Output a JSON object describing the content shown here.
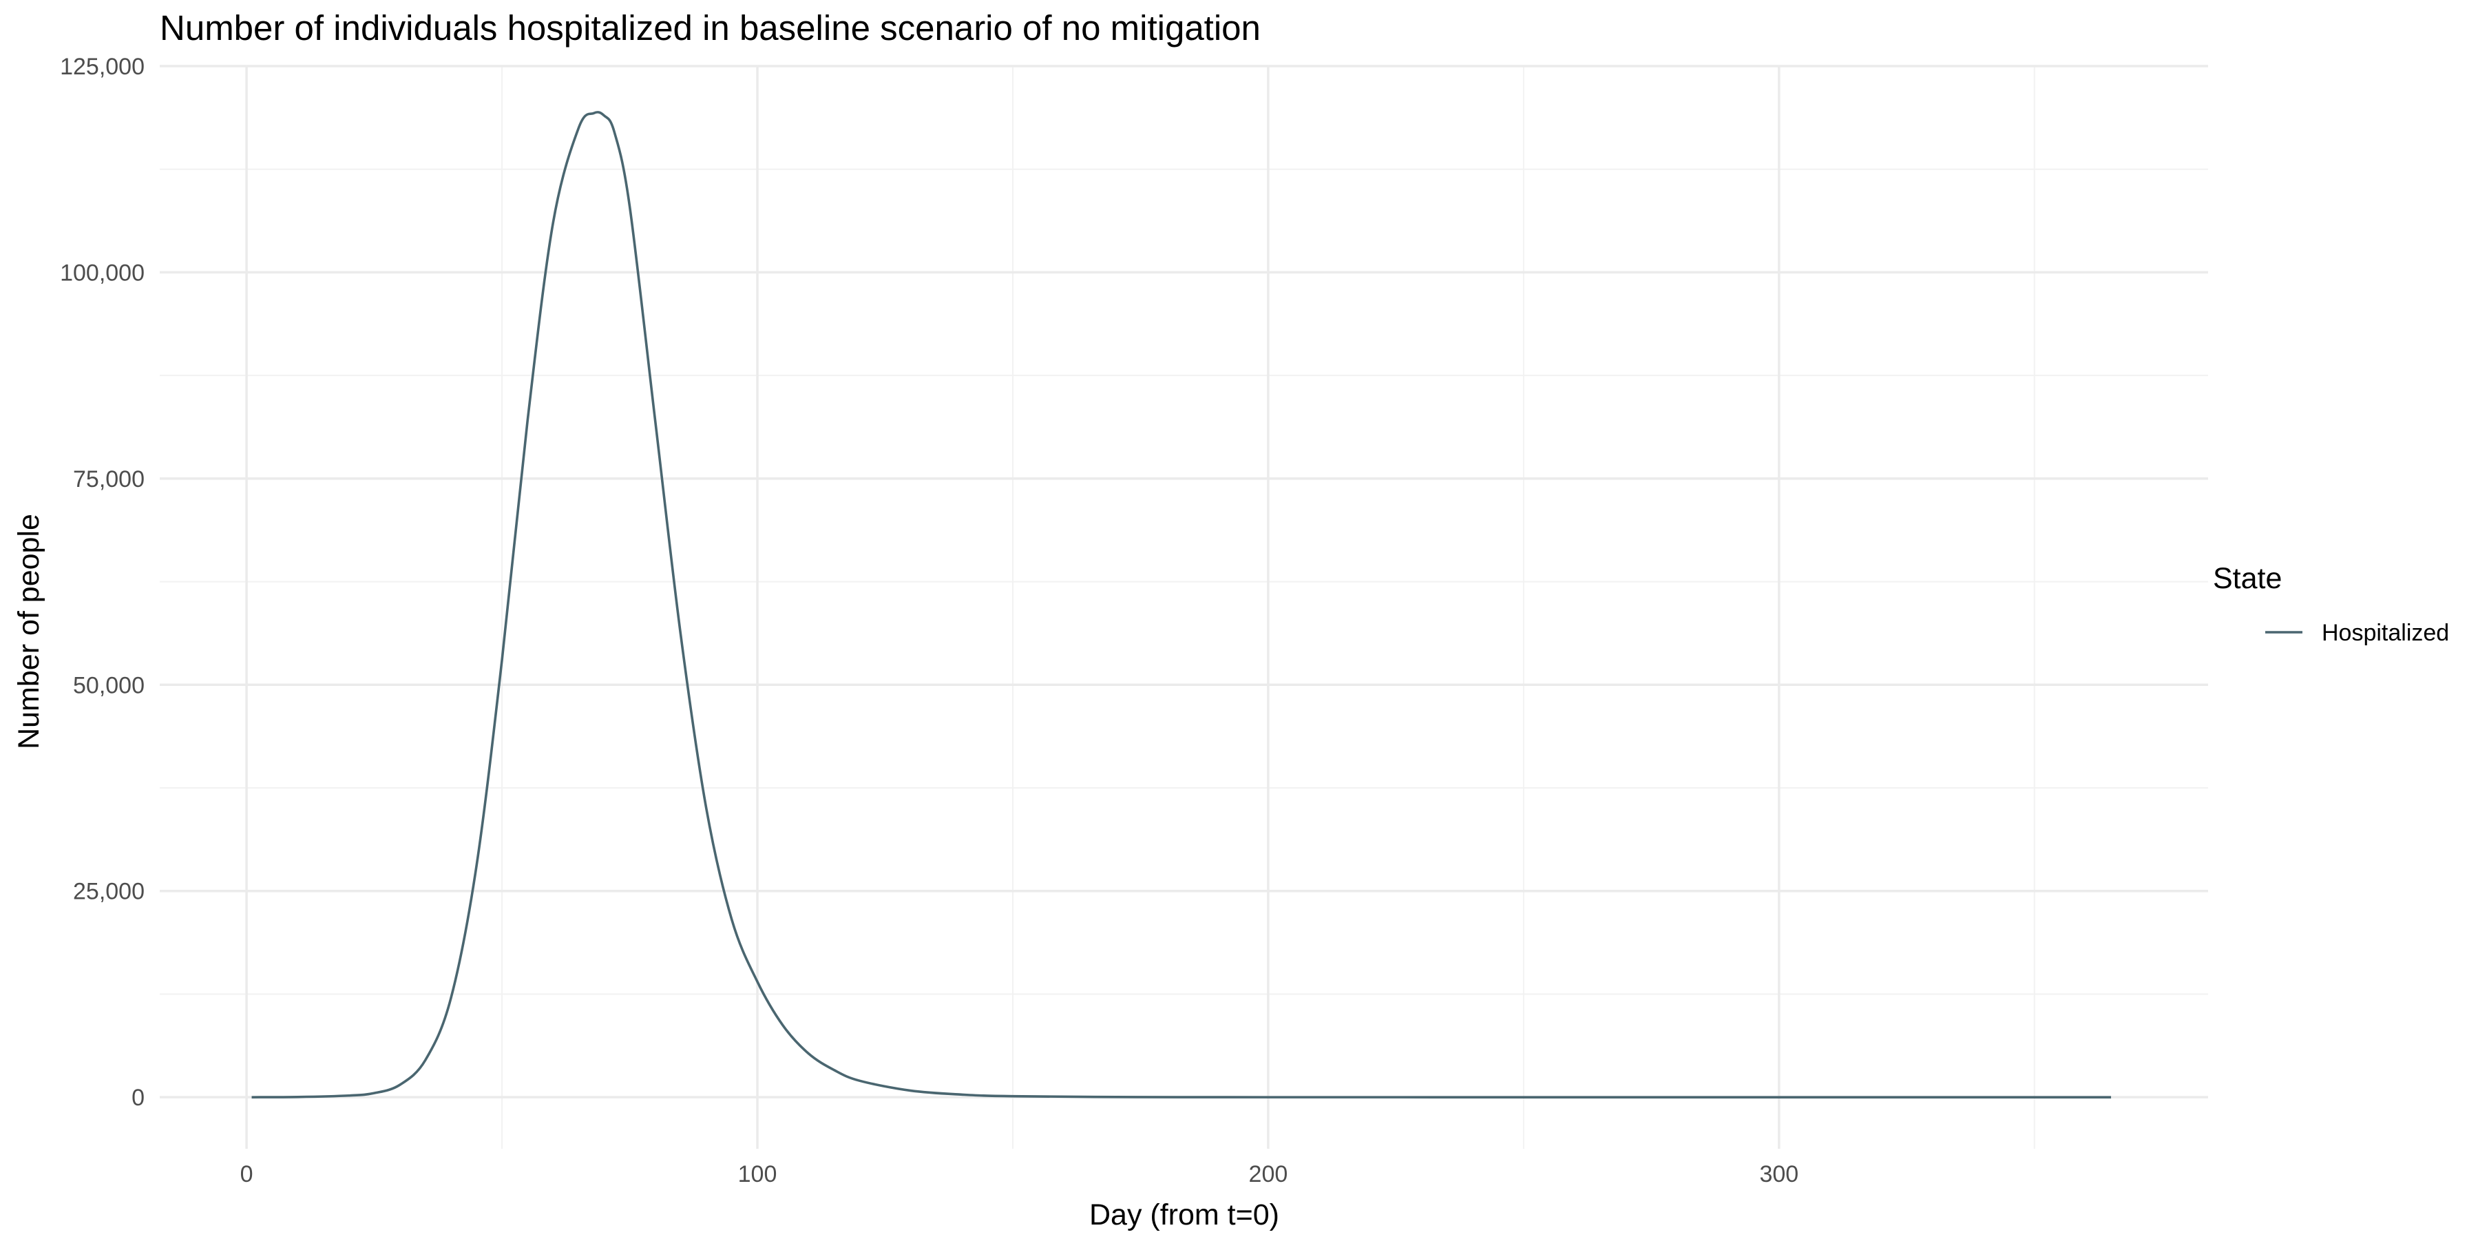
{
  "chart_data": {
    "type": "line",
    "title": "Number of individuals hospitalized in baseline scenario of no mitigation",
    "xlabel": "Day (from t=0)",
    "ylabel": "Number of people",
    "xlim": [
      -17,
      384
    ],
    "ylim": [
      -6250,
      125000
    ],
    "x_ticks": [
      0,
      100,
      200,
      300
    ],
    "x_tick_labels": [
      "0",
      "100",
      "200",
      "300"
    ],
    "y_ticks": [
      0,
      25000,
      50000,
      75000,
      100000,
      125000
    ],
    "y_tick_labels": [
      "0",
      "25,000",
      "50,000",
      "75,000",
      "100,000",
      "125,000"
    ],
    "grid": true,
    "legend": {
      "title": "State",
      "position": "right",
      "entries": [
        "Hospitalized"
      ]
    },
    "series": [
      {
        "name": "Hospitalized",
        "color": "#4a6670",
        "x": [
          1,
          10,
          20,
          25,
          30,
          35,
          40,
          45,
          50,
          55,
          60,
          65,
          68,
          70,
          72,
          75,
          80,
          85,
          90,
          95,
          100,
          105,
          110,
          115,
          120,
          130,
          140,
          150,
          175,
          200,
          250,
          300,
          365
        ],
        "y": [
          0,
          30,
          200,
          500,
          1500,
          4500,
          12000,
          28000,
          53000,
          82000,
          106000,
          117500,
          119300,
          119000,
          117000,
          108000,
          82000,
          56000,
          35000,
          21500,
          14000,
          8700,
          5300,
          3300,
          2000,
          800,
          320,
          120,
          15,
          2,
          0,
          0,
          0
        ]
      }
    ]
  }
}
